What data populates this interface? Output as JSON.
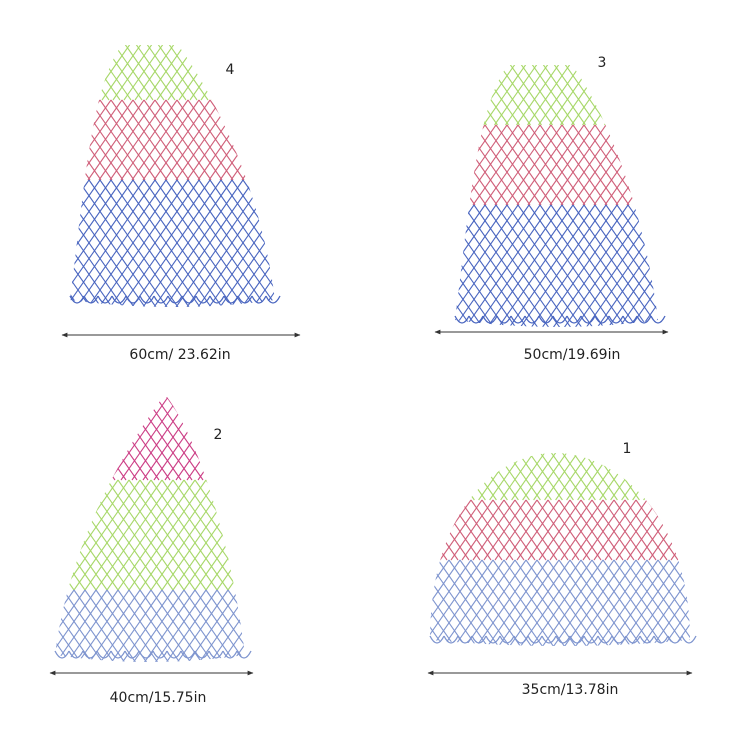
{
  "items": [
    {
      "number": "4",
      "size": "60cm/ 23.62in"
    },
    {
      "number": "3",
      "size": "50cm/19.69in"
    },
    {
      "number": "2",
      "size": "40cm/15.75in"
    },
    {
      "number": "1",
      "size": "35cm/13.78in"
    }
  ]
}
